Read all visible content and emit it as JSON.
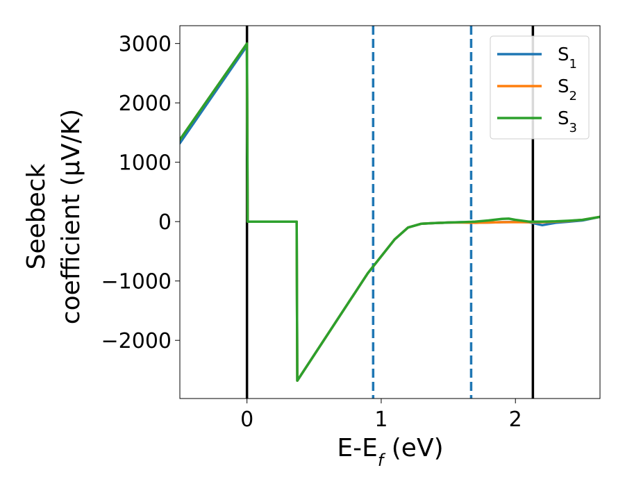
{
  "chart_data": {
    "type": "line",
    "title": "",
    "xlabel": {
      "base": "E-E",
      "sub": "f",
      "suffix": " (eV)"
    },
    "ylabel": {
      "line1": "Seebeck",
      "line2": "coefficient  (μV/K)"
    },
    "xlim": [
      -0.5,
      2.63
    ],
    "ylim": [
      -2980,
      3300
    ],
    "x_ticks": [
      0,
      1,
      2
    ],
    "x_tick_labels": [
      "0",
      "1",
      "2"
    ],
    "y_ticks": [
      -2000,
      -1000,
      0,
      1000,
      2000,
      3000
    ],
    "y_tick_labels": [
      "−2000",
      "−1000",
      "0",
      "1000",
      "2000",
      "3000"
    ],
    "grid": false,
    "legend_position": "top-right",
    "series": [
      {
        "name": "S1",
        "label_base": "S",
        "label_sub": "1",
        "color": "#1f77b4",
        "x": [
          -0.5,
          0.0,
          0.005,
          0.37,
          0.375,
          0.9,
          1.1,
          1.2,
          1.3,
          1.4,
          1.5,
          1.6,
          1.7,
          1.8,
          1.9,
          2.0,
          2.1,
          2.2,
          2.3,
          2.4,
          2.5,
          2.63
        ],
        "y": [
          1320,
          2960,
          0,
          0,
          -2680,
          -870,
          -300,
          -100,
          -35,
          -25,
          -15,
          -10,
          -20,
          -15,
          -10,
          -5,
          -10,
          -60,
          -20,
          0,
          20,
          80
        ]
      },
      {
        "name": "S2",
        "label_base": "S",
        "label_sub": "2",
        "color": "#ff7f0e",
        "x": [
          -0.5,
          0.0,
          0.005,
          0.37,
          0.375,
          0.9,
          1.1,
          1.2,
          1.3,
          1.4,
          1.5,
          1.6,
          1.7,
          1.8,
          1.9,
          2.0,
          2.1,
          2.2,
          2.3,
          2.4,
          2.5,
          2.63
        ],
        "y": [
          1380,
          3000,
          0,
          0,
          -2680,
          -870,
          -300,
          -100,
          -35,
          -25,
          -15,
          -15,
          -20,
          -15,
          -10,
          -10,
          -10,
          -10,
          0,
          10,
          30,
          80
        ]
      },
      {
        "name": "S3",
        "label_base": "S",
        "label_sub": "3",
        "color": "#2ca02c",
        "x": [
          -0.5,
          0.0,
          0.005,
          0.37,
          0.375,
          0.9,
          1.1,
          1.2,
          1.3,
          1.4,
          1.5,
          1.6,
          1.7,
          1.8,
          1.9,
          1.95,
          2.0,
          2.1,
          2.2,
          2.3,
          2.4,
          2.5,
          2.63
        ],
        "y": [
          1380,
          3000,
          0,
          0,
          -2680,
          -870,
          -300,
          -100,
          -35,
          -25,
          -15,
          -10,
          0,
          20,
          45,
          50,
          30,
          0,
          0,
          5,
          15,
          30,
          80
        ]
      }
    ],
    "vertical_lines": [
      {
        "x": 0.0,
        "color": "#000000",
        "style": "solid"
      },
      {
        "x": 0.94,
        "color": "#1f77b4",
        "style": "dashed"
      },
      {
        "x": 1.67,
        "color": "#1f77b4",
        "style": "dashed"
      },
      {
        "x": 2.13,
        "color": "#000000",
        "style": "solid"
      }
    ]
  }
}
